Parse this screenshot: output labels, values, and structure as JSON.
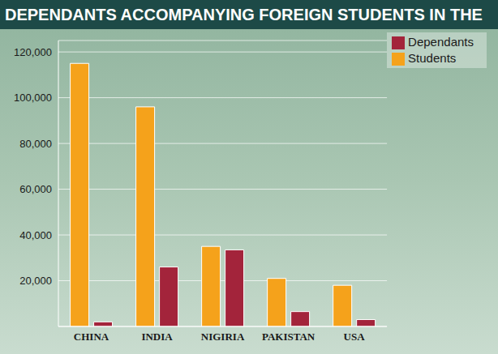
{
  "chart_data": {
    "type": "bar",
    "title": "DEPENDANTS ACCOMPANYING FOREIGN STUDENTS IN THE",
    "categories": [
      "CHINA",
      "INDIA",
      "NIGIRIA",
      "PAKISTAN",
      "USA"
    ],
    "series": [
      {
        "name": "Students",
        "color": "#f5a21b",
        "values": [
          115000,
          96000,
          35000,
          21000,
          18000
        ]
      },
      {
        "name": "Dependants",
        "color": "#a3243b",
        "values": [
          2000,
          26000,
          33500,
          6500,
          3000
        ]
      }
    ],
    "ylim": [
      0,
      125000
    ],
    "yticks": [
      {
        "value": 20000,
        "label": "20,000"
      },
      {
        "value": 40000,
        "label": "40,000"
      },
      {
        "value": 60000,
        "label": "60,000"
      },
      {
        "value": 80000,
        "label": "80,000"
      },
      {
        "value": 100000,
        "label": "100,000"
      },
      {
        "value": 120000,
        "label": "120,000"
      }
    ],
    "grid": true,
    "legend": "top-right"
  }
}
